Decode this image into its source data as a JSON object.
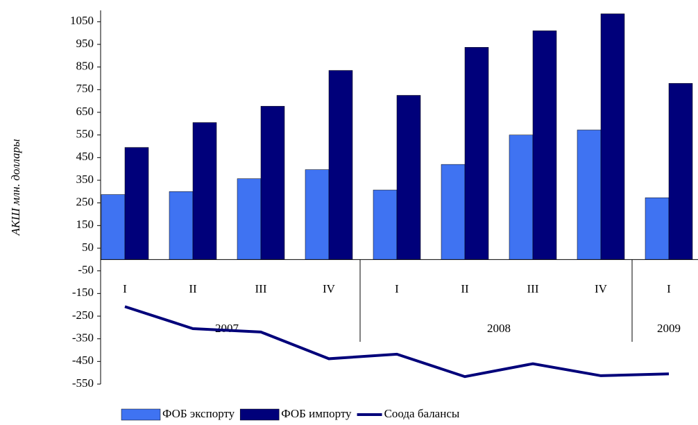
{
  "chart_data": {
    "type": "bar",
    "y_label": "АКШ млн. доллары",
    "groups": [
      {
        "label": "2007",
        "categories": [
          "I",
          "II",
          "III",
          "IV"
        ]
      },
      {
        "label": "2008",
        "categories": [
          "I",
          "II",
          "III",
          "IV"
        ]
      },
      {
        "label": "2009",
        "categories": [
          "I"
        ]
      }
    ],
    "series": [
      {
        "name": "ФОБ экспорту",
        "type": "bar",
        "color": "#3f73f2",
        "values": [
          287,
          300,
          357,
          397,
          307,
          420,
          550,
          572,
          273
        ]
      },
      {
        "name": "ФОБ импорту",
        "type": "bar",
        "color": "#00007a",
        "values": [
          495,
          605,
          677,
          835,
          725,
          937,
          1010,
          1085,
          778
        ]
      },
      {
        "name": "Соода балансы",
        "type": "line",
        "color": "#00007a",
        "values": [
          -208,
          -305,
          -320,
          -438,
          -418,
          -517,
          -460,
          -513,
          -505
        ]
      }
    ],
    "ylim": [
      -550,
      1100
    ],
    "yticks": [
      -550,
      -450,
      -350,
      -250,
      -150,
      -50,
      50,
      150,
      250,
      350,
      450,
      550,
      650,
      750,
      850,
      950,
      1050
    ],
    "legend": "bottom"
  }
}
